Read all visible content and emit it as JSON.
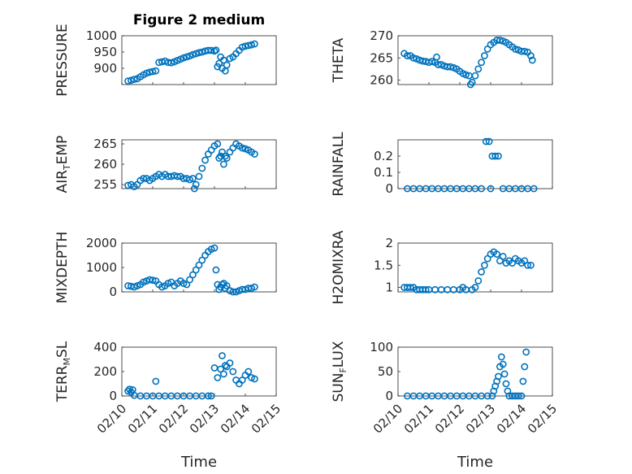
{
  "chart_data": [
    {
      "type": "scatter",
      "title": "Figure 2 medium",
      "ylabel": "PRESSURE",
      "xlim": [
        "02/10",
        "02/15"
      ],
      "ylim": [
        850,
        1000
      ],
      "yticks": [
        900,
        950,
        1000
      ],
      "xticks": [],
      "xlabel": "",
      "points": [
        [
          10.2,
          861
        ],
        [
          10.3,
          863
        ],
        [
          10.4,
          866
        ],
        [
          10.5,
          868
        ],
        [
          10.6,
          874
        ],
        [
          10.7,
          880
        ],
        [
          10.8,
          885
        ],
        [
          10.9,
          888
        ],
        [
          11.0,
          890
        ],
        [
          11.1,
          892
        ],
        [
          11.2,
          918
        ],
        [
          11.3,
          920
        ],
        [
          11.4,
          922
        ],
        [
          11.5,
          918
        ],
        [
          11.6,
          917
        ],
        [
          11.7,
          920
        ],
        [
          11.8,
          924
        ],
        [
          11.9,
          928
        ],
        [
          12.0,
          932
        ],
        [
          12.1,
          935
        ],
        [
          12.2,
          938
        ],
        [
          12.3,
          942
        ],
        [
          12.4,
          945
        ],
        [
          12.5,
          948
        ],
        [
          12.6,
          950
        ],
        [
          12.7,
          953
        ],
        [
          12.8,
          955
        ],
        [
          12.9,
          955
        ],
        [
          13.0,
          953
        ],
        [
          13.05,
          956
        ],
        [
          13.1,
          905
        ],
        [
          13.15,
          915
        ],
        [
          13.2,
          935
        ],
        [
          13.25,
          900
        ],
        [
          13.3,
          925
        ],
        [
          13.35,
          892
        ],
        [
          13.4,
          910
        ],
        [
          13.5,
          930
        ],
        [
          13.6,
          935
        ],
        [
          13.7,
          945
        ],
        [
          13.8,
          955
        ],
        [
          13.9,
          965
        ],
        [
          14.0,
          968
        ],
        [
          14.1,
          970
        ],
        [
          14.2,
          972
        ],
        [
          14.3,
          975
        ]
      ]
    },
    {
      "type": "scatter",
      "ylabel": "THETA",
      "xlim": [
        "02/10",
        "02/15"
      ],
      "ylim": [
        259,
        270
      ],
      "yticks": [
        260,
        265,
        270
      ],
      "xticks": [],
      "xlabel": "",
      "points": [
        [
          10.2,
          266
        ],
        [
          10.3,
          265.5
        ],
        [
          10.4,
          265.5
        ],
        [
          10.5,
          265
        ],
        [
          10.6,
          264.8
        ],
        [
          10.7,
          264.5
        ],
        [
          10.8,
          264.3
        ],
        [
          10.9,
          264.2
        ],
        [
          11.0,
          264.0
        ],
        [
          11.1,
          264.2
        ],
        [
          11.2,
          264.0
        ],
        [
          11.25,
          265.2
        ],
        [
          11.3,
          263.5
        ],
        [
          11.4,
          263.5
        ],
        [
          11.5,
          263.2
        ],
        [
          11.6,
          263.0
        ],
        [
          11.7,
          263.0
        ],
        [
          11.8,
          262.8
        ],
        [
          11.9,
          262.5
        ],
        [
          12.0,
          262.0
        ],
        [
          12.1,
          261.5
        ],
        [
          12.2,
          261.2
        ],
        [
          12.3,
          261.0
        ],
        [
          12.35,
          259.0
        ],
        [
          12.4,
          259.5
        ],
        [
          12.5,
          261.0
        ],
        [
          12.6,
          262.5
        ],
        [
          12.7,
          264.0
        ],
        [
          12.8,
          265.5
        ],
        [
          12.9,
          267.0
        ],
        [
          13.0,
          268.0
        ],
        [
          13.1,
          268.5
        ],
        [
          13.2,
          269.0
        ],
        [
          13.3,
          269.0
        ],
        [
          13.4,
          268.8
        ],
        [
          13.5,
          268.5
        ],
        [
          13.6,
          268.0
        ],
        [
          13.7,
          267.5
        ],
        [
          13.8,
          267.0
        ],
        [
          13.9,
          266.8
        ],
        [
          14.0,
          266.5
        ],
        [
          14.1,
          266.5
        ],
        [
          14.2,
          266.3
        ],
        [
          14.3,
          265.5
        ],
        [
          14.35,
          264.5
        ]
      ]
    },
    {
      "type": "scatter",
      "ylabel": "AIR_TEMP",
      "xlim": [
        "02/10",
        "02/15"
      ],
      "ylim": [
        254,
        266
      ],
      "yticks": [
        255,
        260,
        265
      ],
      "xticks": [],
      "xlabel": "",
      "points": [
        [
          10.2,
          254.8
        ],
        [
          10.3,
          255.0
        ],
        [
          10.4,
          254.5
        ],
        [
          10.5,
          255.0
        ],
        [
          10.6,
          256.0
        ],
        [
          10.7,
          256.5
        ],
        [
          10.8,
          256.5
        ],
        [
          10.9,
          256.0
        ],
        [
          11.0,
          256.5
        ],
        [
          11.1,
          257.0
        ],
        [
          11.2,
          257.5
        ],
        [
          11.3,
          257.0
        ],
        [
          11.4,
          257.5
        ],
        [
          11.5,
          257.0
        ],
        [
          11.6,
          257.0
        ],
        [
          11.7,
          257.2
        ],
        [
          11.8,
          257.0
        ],
        [
          11.9,
          257.0
        ],
        [
          12.0,
          256.5
        ],
        [
          12.1,
          256.5
        ],
        [
          12.2,
          256.2
        ],
        [
          12.3,
          256.5
        ],
        [
          12.35,
          254.0
        ],
        [
          12.4,
          255.0
        ],
        [
          12.5,
          257.0
        ],
        [
          12.6,
          259.0
        ],
        [
          12.7,
          261.0
        ],
        [
          12.8,
          262.5
        ],
        [
          12.9,
          263.5
        ],
        [
          13.0,
          264.5
        ],
        [
          13.1,
          265.0
        ],
        [
          13.15,
          261.5
        ],
        [
          13.2,
          262.0
        ],
        [
          13.25,
          263.0
        ],
        [
          13.3,
          260.0
        ],
        [
          13.35,
          262.0
        ],
        [
          13.4,
          261.5
        ],
        [
          13.5,
          263.0
        ],
        [
          13.6,
          264.0
        ],
        [
          13.7,
          265.0
        ],
        [
          13.8,
          264.5
        ],
        [
          13.9,
          264.0
        ],
        [
          14.0,
          263.8
        ],
        [
          14.1,
          263.5
        ],
        [
          14.2,
          263.0
        ],
        [
          14.3,
          262.5
        ]
      ]
    },
    {
      "type": "scatter",
      "ylabel": "RAINFALL",
      "xlim": [
        "02/10",
        "02/15"
      ],
      "ylim": [
        0,
        0.3
      ],
      "yticks": [
        0,
        0.1,
        0.2
      ],
      "xticks": [],
      "xlabel": "",
      "points": [
        [
          10.3,
          0
        ],
        [
          10.5,
          0
        ],
        [
          10.7,
          0
        ],
        [
          10.9,
          0
        ],
        [
          11.1,
          0
        ],
        [
          11.3,
          0
        ],
        [
          11.5,
          0
        ],
        [
          11.7,
          0
        ],
        [
          11.9,
          0
        ],
        [
          12.1,
          0
        ],
        [
          12.3,
          0
        ],
        [
          12.5,
          0
        ],
        [
          12.7,
          0
        ],
        [
          12.85,
          0.29
        ],
        [
          12.95,
          0.29
        ],
        [
          13.0,
          0
        ],
        [
          13.05,
          0.2
        ],
        [
          13.15,
          0.2
        ],
        [
          13.25,
          0.2
        ],
        [
          13.4,
          0
        ],
        [
          13.6,
          0
        ],
        [
          13.8,
          0
        ],
        [
          14.0,
          0
        ],
        [
          14.2,
          0
        ],
        [
          14.4,
          0
        ]
      ]
    },
    {
      "type": "scatter",
      "ylabel": "MIXDEPTH",
      "xlim": [
        "02/10",
        "02/15"
      ],
      "ylim": [
        0,
        2000
      ],
      "yticks": [
        0,
        1000,
        2000
      ],
      "xticks": [],
      "xlabel": "",
      "points": [
        [
          10.2,
          250
        ],
        [
          10.3,
          230
        ],
        [
          10.4,
          200
        ],
        [
          10.5,
          250
        ],
        [
          10.6,
          300
        ],
        [
          10.7,
          400
        ],
        [
          10.8,
          450
        ],
        [
          10.9,
          500
        ],
        [
          11.0,
          480
        ],
        [
          11.1,
          450
        ],
        [
          11.2,
          300
        ],
        [
          11.3,
          200
        ],
        [
          11.4,
          250
        ],
        [
          11.5,
          350
        ],
        [
          11.6,
          400
        ],
        [
          11.7,
          250
        ],
        [
          11.8,
          350
        ],
        [
          11.9,
          450
        ],
        [
          12.0,
          350
        ],
        [
          12.1,
          300
        ],
        [
          12.2,
          500
        ],
        [
          12.3,
          700
        ],
        [
          12.4,
          900
        ],
        [
          12.5,
          1100
        ],
        [
          12.6,
          1300
        ],
        [
          12.7,
          1500
        ],
        [
          12.8,
          1650
        ],
        [
          12.9,
          1750
        ],
        [
          13.0,
          1800
        ],
        [
          13.05,
          900
        ],
        [
          13.1,
          300
        ],
        [
          13.15,
          100
        ],
        [
          13.2,
          200
        ],
        [
          13.25,
          300
        ],
        [
          13.3,
          350
        ],
        [
          13.35,
          150
        ],
        [
          13.4,
          250
        ],
        [
          13.5,
          50
        ],
        [
          13.6,
          0
        ],
        [
          13.7,
          0
        ],
        [
          13.8,
          50
        ],
        [
          13.9,
          100
        ],
        [
          14.0,
          100
        ],
        [
          14.1,
          150
        ],
        [
          14.2,
          150
        ],
        [
          14.3,
          200
        ]
      ]
    },
    {
      "type": "scatter",
      "ylabel": "H2OMIXRA",
      "xlim": [
        "02/10",
        "02/15"
      ],
      "ylim": [
        0.9,
        2.0
      ],
      "yticks": [
        1,
        1.5,
        2
      ],
      "xticks": [],
      "xlabel": "",
      "points": [
        [
          10.2,
          1.0
        ],
        [
          10.3,
          1.0
        ],
        [
          10.4,
          1.0
        ],
        [
          10.5,
          1.0
        ],
        [
          10.6,
          0.95
        ],
        [
          10.7,
          0.95
        ],
        [
          10.8,
          0.95
        ],
        [
          10.9,
          0.95
        ],
        [
          11.0,
          0.95
        ],
        [
          11.2,
          0.95
        ],
        [
          11.4,
          0.95
        ],
        [
          11.6,
          0.95
        ],
        [
          11.8,
          0.95
        ],
        [
          12.0,
          0.95
        ],
        [
          12.1,
          1.0
        ],
        [
          12.2,
          0.95
        ],
        [
          12.4,
          0.95
        ],
        [
          12.5,
          1.0
        ],
        [
          12.6,
          1.15
        ],
        [
          12.7,
          1.35
        ],
        [
          12.8,
          1.5
        ],
        [
          12.9,
          1.65
        ],
        [
          13.0,
          1.75
        ],
        [
          13.1,
          1.8
        ],
        [
          13.2,
          1.75
        ],
        [
          13.3,
          1.6
        ],
        [
          13.4,
          1.7
        ],
        [
          13.5,
          1.55
        ],
        [
          13.6,
          1.6
        ],
        [
          13.7,
          1.55
        ],
        [
          13.8,
          1.65
        ],
        [
          13.9,
          1.6
        ],
        [
          14.0,
          1.55
        ],
        [
          14.1,
          1.6
        ],
        [
          14.2,
          1.5
        ],
        [
          14.3,
          1.5
        ]
      ]
    },
    {
      "type": "scatter",
      "ylabel": "TERR_MSL",
      "xlim": [
        "02/10",
        "02/15"
      ],
      "ylim": [
        0,
        400
      ],
      "yticks": [
        0,
        200,
        400
      ],
      "xticks": [
        "02/10",
        "02/11",
        "02/12",
        "02/13",
        "02/14",
        "02/15"
      ],
      "xlabel": "Time",
      "points": [
        [
          10.2,
          40
        ],
        [
          10.25,
          55
        ],
        [
          10.3,
          30
        ],
        [
          10.35,
          50
        ],
        [
          10.4,
          5
        ],
        [
          10.6,
          0
        ],
        [
          10.8,
          0
        ],
        [
          11.0,
          0
        ],
        [
          11.1,
          120
        ],
        [
          11.2,
          0
        ],
        [
          11.4,
          0
        ],
        [
          11.6,
          0
        ],
        [
          11.8,
          0
        ],
        [
          12.0,
          0
        ],
        [
          12.2,
          0
        ],
        [
          12.4,
          0
        ],
        [
          12.6,
          0
        ],
        [
          12.8,
          0
        ],
        [
          12.9,
          0
        ],
        [
          13.0,
          230
        ],
        [
          13.1,
          150
        ],
        [
          13.2,
          220
        ],
        [
          13.25,
          330
        ],
        [
          13.3,
          180
        ],
        [
          13.35,
          250
        ],
        [
          13.4,
          240
        ],
        [
          13.5,
          270
        ],
        [
          13.6,
          200
        ],
        [
          13.7,
          130
        ],
        [
          13.8,
          100
        ],
        [
          13.9,
          130
        ],
        [
          14.0,
          170
        ],
        [
          14.1,
          200
        ],
        [
          14.2,
          150
        ],
        [
          14.3,
          140
        ]
      ]
    },
    {
      "type": "scatter",
      "ylabel": "SUN_FLUX",
      "xlim": [
        "02/10",
        "02/15"
      ],
      "ylim": [
        0,
        100
      ],
      "yticks": [
        0,
        50,
        100
      ],
      "xticks": [
        "02/10",
        "02/11",
        "02/12",
        "02/13",
        "02/14",
        "02/15"
      ],
      "xlabel": "Time",
      "points": [
        [
          10.3,
          0
        ],
        [
          10.5,
          0
        ],
        [
          10.7,
          0
        ],
        [
          10.9,
          0
        ],
        [
          11.1,
          0
        ],
        [
          11.3,
          0
        ],
        [
          11.5,
          0
        ],
        [
          11.7,
          0
        ],
        [
          11.9,
          0
        ],
        [
          12.1,
          0
        ],
        [
          12.3,
          0
        ],
        [
          12.5,
          0
        ],
        [
          12.7,
          0
        ],
        [
          12.9,
          0
        ],
        [
          13.05,
          0
        ],
        [
          13.1,
          10
        ],
        [
          13.15,
          20
        ],
        [
          13.2,
          30
        ],
        [
          13.25,
          40
        ],
        [
          13.3,
          60
        ],
        [
          13.35,
          80
        ],
        [
          13.4,
          65
        ],
        [
          13.45,
          45
        ],
        [
          13.5,
          25
        ],
        [
          13.55,
          10
        ],
        [
          13.6,
          0
        ],
        [
          13.7,
          0
        ],
        [
          13.8,
          0
        ],
        [
          13.9,
          0
        ],
        [
          14.0,
          0
        ],
        [
          14.05,
          30
        ],
        [
          14.1,
          60
        ],
        [
          14.15,
          90
        ]
      ]
    }
  ]
}
